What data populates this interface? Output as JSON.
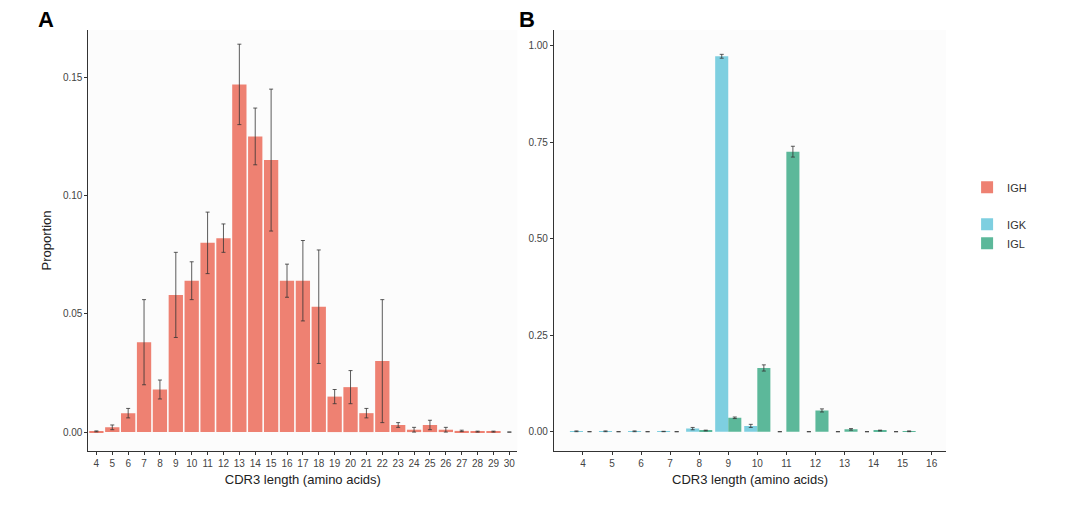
{
  "chart_data": [
    {
      "type": "bar",
      "title": "A",
      "xlabel": "CDR3 length (amino acids)",
      "ylabel": "Proportion",
      "x": [
        4,
        5,
        6,
        7,
        8,
        9,
        10,
        11,
        12,
        13,
        14,
        15,
        16,
        17,
        18,
        19,
        20,
        21,
        22,
        23,
        24,
        25,
        26,
        27,
        28,
        29,
        30
      ],
      "series": [
        {
          "name": "IGH",
          "color": "#ee8172",
          "values": [
            0.0003,
            0.002,
            0.008,
            0.038,
            0.018,
            0.058,
            0.064,
            0.08,
            0.082,
            0.147,
            0.125,
            0.115,
            0.064,
            0.064,
            0.053,
            0.015,
            0.019,
            0.008,
            0.03,
            0.003,
            0.001,
            0.003,
            0.001,
            0.0005,
            0.0002,
            0.0002,
            0
          ],
          "errors": [
            0.0002,
            0.001,
            0.002,
            0.018,
            0.004,
            0.018,
            0.008,
            0.013,
            0.006,
            0.017,
            0.012,
            0.03,
            0.007,
            0.017,
            0.024,
            0.003,
            0.007,
            0.002,
            0.026,
            0.001,
            0.001,
            0.002,
            0.001,
            0.0003,
            0.0002,
            0.0002,
            0
          ]
        }
      ],
      "xlim": [
        3.5,
        30.5
      ],
      "xticks": [
        4,
        5,
        6,
        7,
        8,
        9,
        10,
        11,
        12,
        13,
        14,
        15,
        16,
        17,
        18,
        19,
        20,
        21,
        22,
        23,
        24,
        25,
        26,
        27,
        28,
        29,
        30
      ],
      "ylim": [
        -0.008,
        0.17
      ],
      "yticks": [
        {
          "value": 0,
          "label": "0.00"
        },
        {
          "value": 0.05,
          "label": "0.05"
        },
        {
          "value": 0.1,
          "label": "0.10"
        },
        {
          "value": 0.15,
          "label": "0.15"
        }
      ],
      "legend": "right"
    },
    {
      "type": "bar",
      "title": "B",
      "xlabel": "CDR3 length (amino acids)",
      "x": [
        4,
        5,
        6,
        7,
        8,
        9,
        10,
        11,
        12,
        13,
        14,
        15,
        16
      ],
      "series": [
        {
          "name": "IGK",
          "color": "#7ecfe0",
          "values": [
            0.001,
            0.001,
            0.001,
            0.0005,
            0.008,
            0.972,
            0.015,
            0,
            0,
            0,
            0,
            0,
            null
          ],
          "errors": [
            0.001,
            0.001,
            0.001,
            0.0005,
            0.003,
            0.005,
            0.004,
            0,
            0,
            0,
            0,
            0,
            null
          ]
        },
        {
          "name": "IGL",
          "color": "#5cb89a",
          "values": [
            0,
            0,
            0,
            0,
            0.003,
            0.036,
            0.165,
            0.725,
            0.055,
            0.006,
            0.003,
            0.001,
            null
          ],
          "errors": [
            0,
            0,
            0,
            0,
            0.001,
            0.002,
            0.008,
            0.014,
            0.004,
            0.002,
            0.001,
            0.001,
            null
          ]
        }
      ],
      "xlim": [
        3,
        16.5
      ],
      "xticks": [
        4,
        5,
        6,
        7,
        8,
        9,
        10,
        11,
        12,
        13,
        14,
        15,
        16
      ],
      "ylim": [
        -0.05,
        1.04
      ],
      "yticks": [
        {
          "value": 0,
          "label": "0.00"
        },
        {
          "value": 0.25,
          "label": "0.25"
        },
        {
          "value": 0.5,
          "label": "0.50"
        },
        {
          "value": 0.75,
          "label": "0.75"
        },
        {
          "value": 1,
          "label": "1.00"
        }
      ],
      "legend": "right"
    }
  ]
}
